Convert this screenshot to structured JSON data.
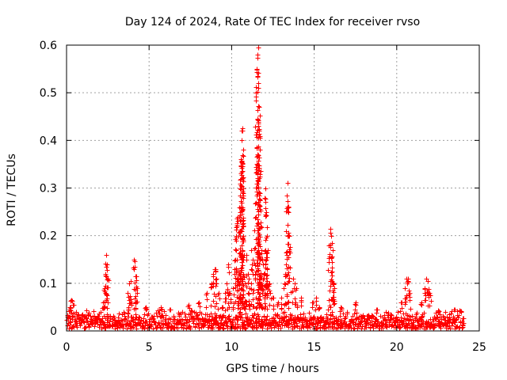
{
  "chart_data": {
    "type": "scatter",
    "title": "Day 124 of 2024, Rate Of TEC Index for receiver rvso",
    "xlabel": "GPS time / hours",
    "ylabel": "ROTI / TECUs",
    "xlim": [
      0,
      25
    ],
    "ylim": [
      0,
      0.6
    ],
    "xticks": [
      0,
      5,
      10,
      15,
      20,
      25
    ],
    "yticks": [
      0,
      0.1,
      0.2,
      0.3,
      0.4,
      0.5,
      0.6
    ],
    "ytick_labels": [
      "0",
      "0.1",
      "0.2",
      "0.3",
      "0.4",
      "0.5",
      "0.6"
    ],
    "grid": true,
    "marker": "+",
    "color": "#ff0000",
    "series": [
      {
        "name": "ROTI",
        "baseline_range": [
          0,
          24
        ],
        "baseline_level": [
          0.005,
          0.045
        ],
        "points": [
          [
            0.1,
            0.03
          ],
          [
            0.2,
            0.05
          ],
          [
            0.3,
            0.065
          ],
          [
            0.4,
            0.055
          ],
          [
            2.2,
            0.06
          ],
          [
            2.3,
            0.09
          ],
          [
            2.35,
            0.12
          ],
          [
            2.4,
            0.16
          ],
          [
            2.45,
            0.14
          ],
          [
            2.5,
            0.11
          ],
          [
            3.7,
            0.08
          ],
          [
            3.8,
            0.1
          ],
          [
            3.9,
            0.105
          ],
          [
            4.1,
            0.15
          ],
          [
            4.15,
            0.135
          ],
          [
            4.2,
            0.115
          ],
          [
            4.25,
            0.09
          ],
          [
            4.8,
            0.05
          ],
          [
            5.7,
            0.05
          ],
          [
            6.3,
            0.045
          ],
          [
            7.4,
            0.055
          ],
          [
            8.0,
            0.06
          ],
          [
            8.5,
            0.08
          ],
          [
            8.8,
            0.1
          ],
          [
            8.9,
            0.12
          ],
          [
            9.0,
            0.13
          ],
          [
            9.05,
            0.11
          ],
          [
            9.2,
            0.08
          ],
          [
            9.4,
            0.05
          ],
          [
            9.6,
            0.08
          ],
          [
            9.7,
            0.1
          ],
          [
            9.8,
            0.14
          ],
          [
            9.9,
            0.08
          ],
          [
            10.1,
            0.09
          ],
          [
            10.2,
            0.15
          ],
          [
            10.25,
            0.2
          ],
          [
            10.3,
            0.22
          ],
          [
            10.35,
            0.24
          ],
          [
            10.4,
            0.12
          ],
          [
            10.45,
            0.26
          ],
          [
            10.5,
            0.25
          ],
          [
            10.52,
            0.3
          ],
          [
            10.55,
            0.33
          ],
          [
            10.58,
            0.36
          ],
          [
            10.6,
            0.4
          ],
          [
            10.62,
            0.42
          ],
          [
            10.65,
            0.425
          ],
          [
            10.68,
            0.38
          ],
          [
            10.7,
            0.3
          ],
          [
            10.72,
            0.2
          ],
          [
            10.8,
            0.1
          ],
          [
            10.9,
            0.16
          ],
          [
            11.0,
            0.12
          ],
          [
            11.1,
            0.09
          ],
          [
            11.2,
            0.17
          ],
          [
            11.3,
            0.12
          ],
          [
            11.45,
            0.5
          ],
          [
            11.5,
            0.55
          ],
          [
            11.55,
            0.58
          ],
          [
            11.6,
            0.595
          ],
          [
            11.62,
            0.52
          ],
          [
            11.65,
            0.47
          ],
          [
            11.6,
            0.43
          ],
          [
            11.65,
            0.42
          ],
          [
            11.7,
            0.38
          ],
          [
            11.68,
            0.32
          ],
          [
            11.75,
            0.22
          ],
          [
            11.8,
            0.17
          ],
          [
            11.9,
            0.14
          ],
          [
            11.95,
            0.12
          ],
          [
            12.0,
            0.28
          ],
          [
            12.05,
            0.3
          ],
          [
            12.1,
            0.25
          ],
          [
            12.15,
            0.2
          ],
          [
            12.2,
            0.17
          ],
          [
            12.3,
            0.1
          ],
          [
            12.5,
            0.07
          ],
          [
            12.8,
            0.06
          ],
          [
            13.0,
            0.07
          ],
          [
            13.2,
            0.1
          ],
          [
            13.3,
            0.21
          ],
          [
            13.35,
            0.285
          ],
          [
            13.4,
            0.31
          ],
          [
            13.45,
            0.25
          ],
          [
            13.5,
            0.2
          ],
          [
            13.7,
            0.11
          ],
          [
            13.8,
            0.1
          ],
          [
            13.9,
            0.09
          ],
          [
            14.2,
            0.07
          ],
          [
            14.9,
            0.06
          ],
          [
            15.1,
            0.07
          ],
          [
            15.3,
            0.05
          ],
          [
            15.9,
            0.18
          ],
          [
            16.0,
            0.215
          ],
          [
            16.05,
            0.2
          ],
          [
            16.1,
            0.17
          ],
          [
            16.15,
            0.1
          ],
          [
            16.2,
            0.09
          ],
          [
            16.6,
            0.05
          ],
          [
            17.5,
            0.06
          ],
          [
            18.8,
            0.045
          ],
          [
            20.3,
            0.06
          ],
          [
            20.5,
            0.09
          ],
          [
            20.6,
            0.11
          ],
          [
            20.7,
            0.105
          ],
          [
            20.8,
            0.08
          ],
          [
            21.5,
            0.06
          ],
          [
            21.7,
            0.09
          ],
          [
            21.8,
            0.11
          ],
          [
            21.9,
            0.105
          ],
          [
            22.0,
            0.08
          ],
          [
            22.5,
            0.04
          ],
          [
            23.5,
            0.045
          ],
          [
            23.9,
            0.04
          ]
        ]
      }
    ]
  }
}
